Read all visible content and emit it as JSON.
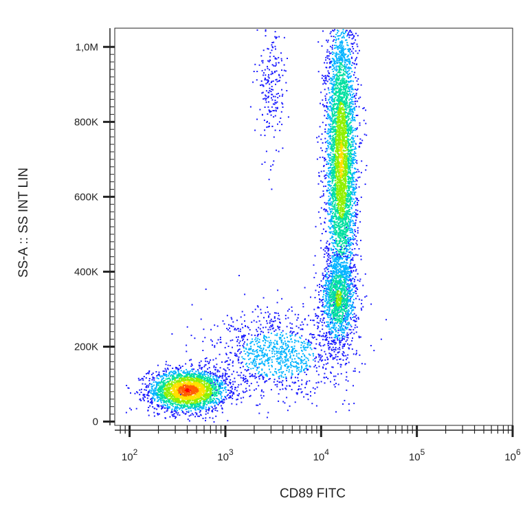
{
  "chart_data": {
    "type": "scatter",
    "style": "density dot plot (flow cytometry)",
    "xlabel": "CD89 FITC",
    "ylabel": "SS-A :: SS INT LIN",
    "x_scale": "log",
    "y_scale": "linear",
    "xlim": [
      70,
      1000000
    ],
    "ylim": [
      -10000,
      1050000
    ],
    "x_ticks": [
      {
        "value": 100,
        "base": "10",
        "exp": "2"
      },
      {
        "value": 1000,
        "base": "10",
        "exp": "3"
      },
      {
        "value": 10000,
        "base": "10",
        "exp": "4"
      },
      {
        "value": 100000,
        "base": "10",
        "exp": "5"
      },
      {
        "value": 1000000,
        "base": "10",
        "exp": "6"
      }
    ],
    "y_ticks": [
      {
        "value": 0,
        "label": "0"
      },
      {
        "value": 200000,
        "label": "200K"
      },
      {
        "value": 400000,
        "label": "400K"
      },
      {
        "value": 600000,
        "label": "600K"
      },
      {
        "value": 800000,
        "label": "800K"
      },
      {
        "value": 1000000,
        "label": "1,0M"
      }
    ],
    "grid": false,
    "density_colors": [
      "#1a1aff",
      "#00b3ff",
      "#00e0a0",
      "#90f000",
      "#ffe000",
      "#ff6000",
      "#ff0000"
    ],
    "populations": [
      {
        "x_center": 400,
        "y_center": 85000,
        "x_spread_decades": 0.2,
        "y_spread": 28000,
        "points": 2600,
        "peak_level": 6
      },
      {
        "x_center": 16000,
        "y_center": 700000,
        "x_spread_decades": 0.08,
        "y_spread": 190000,
        "points": 4200,
        "peak_level": 4
      },
      {
        "x_center": 15000,
        "y_center": 330000,
        "x_spread_decades": 0.09,
        "y_spread": 60000,
        "points": 1200,
        "peak_level": 3
      },
      {
        "x_center": 3500,
        "y_center": 180000,
        "x_spread_decades": 0.35,
        "y_spread": 55000,
        "points": 1100,
        "peak_level": 1
      },
      {
        "x_center": 3000,
        "y_center": 900000,
        "x_spread_decades": 0.07,
        "y_spread": 90000,
        "points": 220,
        "peak_level": 0
      }
    ]
  }
}
